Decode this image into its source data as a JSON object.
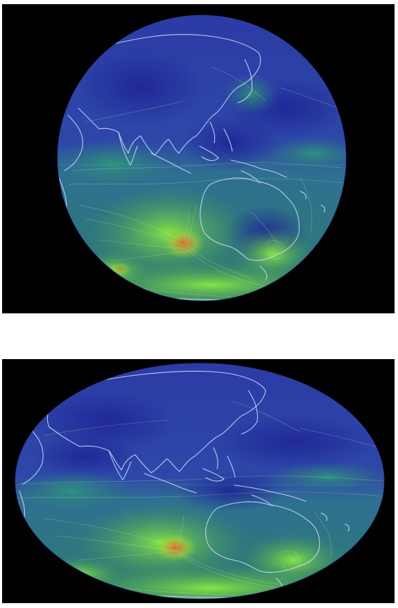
{
  "figure": {
    "panels": [
      {
        "projection": "orthographic"
      },
      {
        "projection": "hammer-aitoff"
      }
    ]
  },
  "colors": {
    "background": "#000000",
    "page": "#ffffff",
    "calm_wind": "#2a2f9c",
    "moderate_wind": "#2f7e7a",
    "strong_wind": "#7fdc35",
    "peak_wind": "#e06a2a",
    "coastline": "#cfd8ff"
  }
}
